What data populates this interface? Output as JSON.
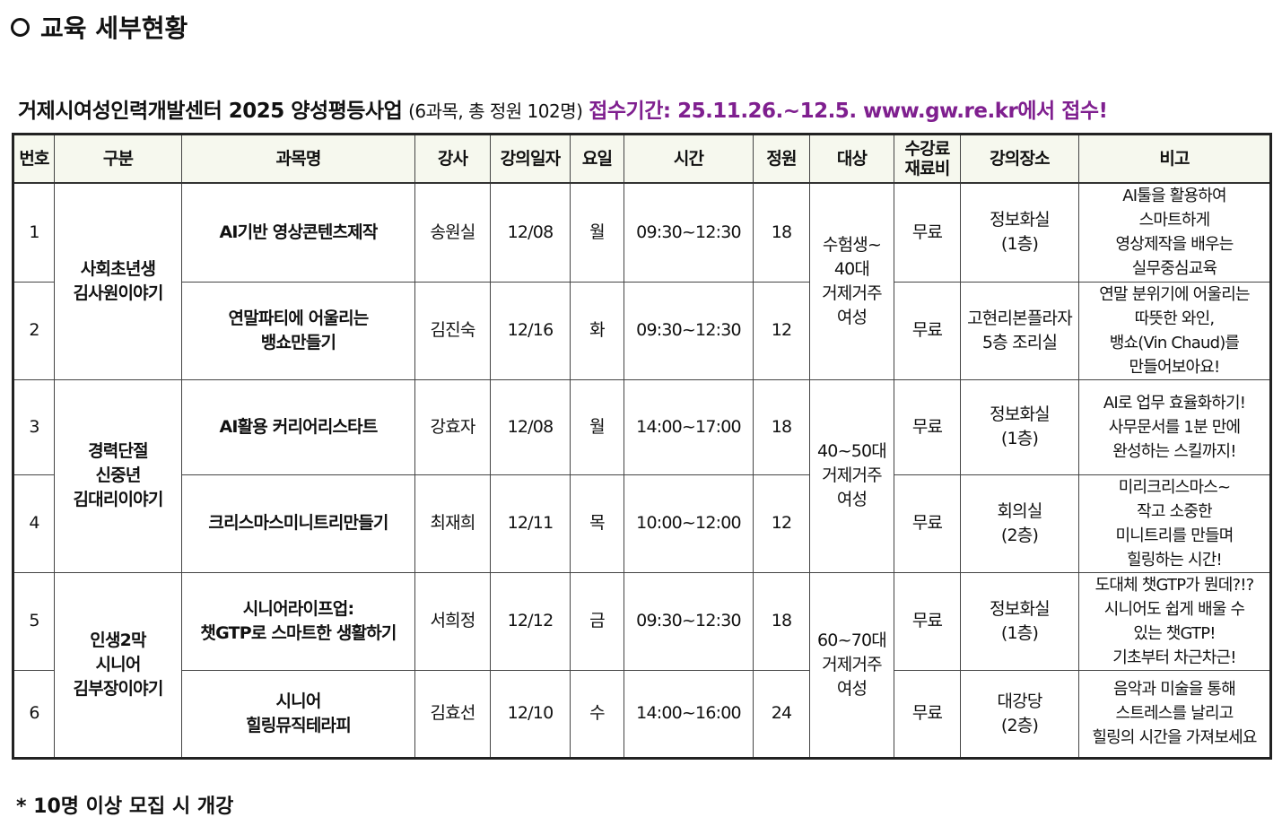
{
  "section_title": "교육 세부현황",
  "heading": {
    "org": "거제시여성인력개발센터 2025 양성평등사업",
    "summary": "(6과목, 총 정원 102명)",
    "application": "접수기간: 25.11.26.~12.5. www.gw.re.kr에서 접수!",
    "accent_color": "#7f1f8f"
  },
  "columns": [
    "번호",
    "구분",
    "과목명",
    "강사",
    "강의일자",
    "요일",
    "시간",
    "정원",
    "대상",
    "수강료\n재료비",
    "강의장소",
    "비고"
  ],
  "groups": [
    {
      "name": "사회초년생\n김사원이야기",
      "target": "수험생~\n40대\n거제거주\n여성"
    },
    {
      "name": "경력단절\n신중년\n김대리이야기",
      "target": "40~50대\n거제거주\n여성"
    },
    {
      "name": "인생2막\n시니어\n김부장이야기",
      "target": "60~70대\n거제거주\n여성"
    }
  ],
  "rows": [
    {
      "no": "1",
      "course": "AI기반 영상콘텐츠제작",
      "instructor": "송원실",
      "date": "12/08",
      "day": "월",
      "time": "09:30~12:30",
      "capacity": "18",
      "fee": "무료",
      "place": "정보화실\n(1층)",
      "note": "AI툴을 활용하여\n스마트하게\n영상제작을 배우는\n실무중심교육"
    },
    {
      "no": "2",
      "course": "연말파티에 어울리는\n뱅쇼만들기",
      "instructor": "김진숙",
      "date": "12/16",
      "day": "화",
      "time": "09:30~12:30",
      "capacity": "12",
      "fee": "무료",
      "place": "고현리본플라자\n5층 조리실",
      "note": "연말 분위기에 어울리는\n따뜻한 와인,\n뱅쇼(Vin Chaud)를\n만들어보아요!"
    },
    {
      "no": "3",
      "course": "AI활용 커리어리스타트",
      "instructor": "강효자",
      "date": "12/08",
      "day": "월",
      "time": "14:00~17:00",
      "capacity": "18",
      "fee": "무료",
      "place": "정보화실\n(1층)",
      "note": "AI로 업무 효율화하기!\n사무문서를 1분 만에\n완성하는 스킬까지!"
    },
    {
      "no": "4",
      "course": "크리스마스미니트리만들기",
      "instructor": "최재희",
      "date": "12/11",
      "day": "목",
      "time": "10:00~12:00",
      "capacity": "12",
      "fee": "무료",
      "place": "회의실\n(2층)",
      "note": "미리크리스마스~\n작고 소중한\n미니트리를 만들며\n힐링하는 시간!"
    },
    {
      "no": "5",
      "course": "시니어라이프업:\n챗GTP로 스마트한 생활하기",
      "instructor": "서희정",
      "date": "12/12",
      "day": "금",
      "time": "09:30~12:30",
      "capacity": "18",
      "fee": "무료",
      "place": "정보화실\n(1층)",
      "note": "도대체 챗GTP가 뭔데?!?\n시니어도 쉽게 배울 수\n있는 챗GTP!\n기초부터 차근차근!"
    },
    {
      "no": "6",
      "course": "시니어\n힐링뮤직테라피",
      "instructor": "김효선",
      "date": "12/10",
      "day": "수",
      "time": "14:00~16:00",
      "capacity": "24",
      "fee": "무료",
      "place": "대강당\n(2층)",
      "note": "음악과 미술을 통해\n스트레스를 날리고\n힐링의 시간을 가져보세요"
    }
  ],
  "footnote": "* 10명 이상 모집 시 개강"
}
